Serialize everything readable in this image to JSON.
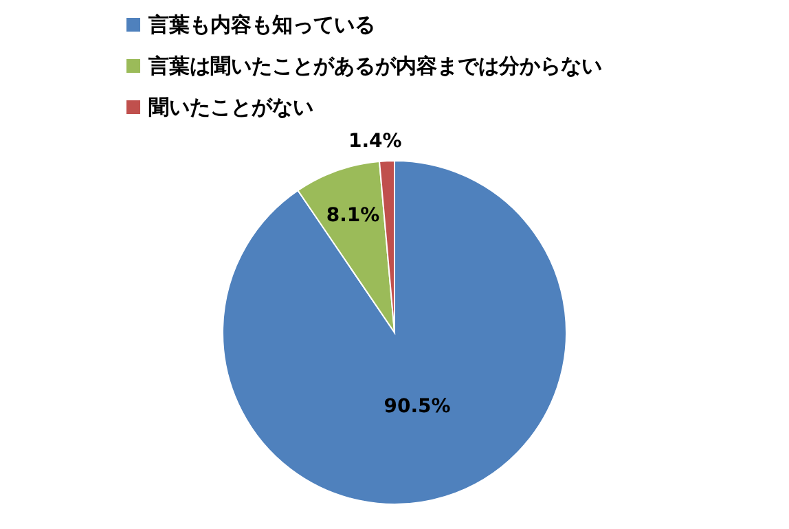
{
  "chart_data": {
    "type": "pie",
    "categories": [
      "言葉も内容も知っている",
      "言葉は聞いたことがあるが内容までは分からない",
      "聞いたことがない"
    ],
    "values": [
      90.5,
      8.1,
      1.4
    ],
    "colors": [
      "#4f81bd",
      "#9bbb59",
      "#c0504d"
    ],
    "value_labels": [
      "90.5%",
      "8.1%",
      "1.4%"
    ],
    "legend": "top"
  }
}
